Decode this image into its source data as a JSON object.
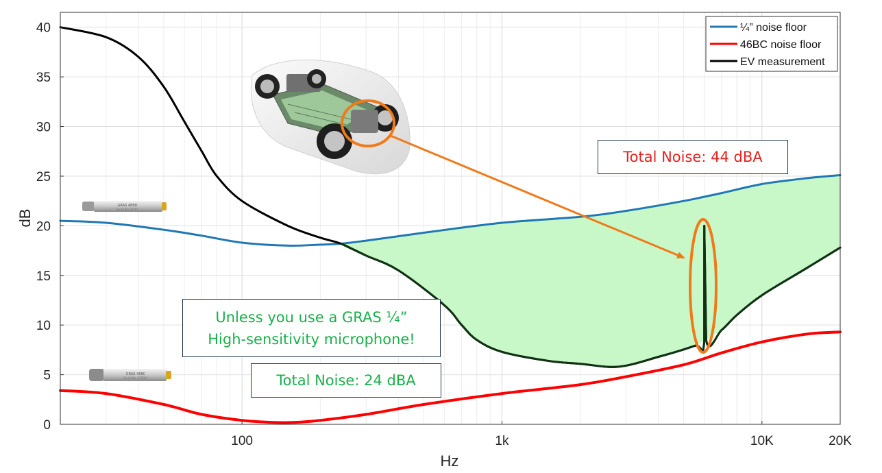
{
  "chart_data": {
    "type": "line",
    "xlabel": "Hz",
    "ylabel": "dB",
    "x_scale": "log",
    "xlim": [
      20,
      20000
    ],
    "ylim": [
      0,
      41.5
    ],
    "grid": true,
    "legend_position": "top-right",
    "x_ticks": [
      {
        "value": 100,
        "label": "100"
      },
      {
        "value": 1000,
        "label": "1k"
      },
      {
        "value": 10000,
        "label": "10K"
      },
      {
        "value": 20000,
        "label": "20K"
      }
    ],
    "y_ticks": [
      0,
      5,
      10,
      15,
      20,
      25,
      30,
      35,
      40
    ],
    "series": [
      {
        "name": "¼” noise floor",
        "color": "#1f77b4",
        "x": [
          20,
          30,
          50,
          70,
          100,
          150,
          200,
          240,
          300,
          500,
          1000,
          2000,
          3000,
          5000,
          7000,
          10000,
          15000,
          20000
        ],
        "y": [
          20.5,
          20.3,
          19.6,
          19.0,
          18.3,
          18.0,
          18.1,
          18.2,
          18.5,
          19.3,
          20.3,
          20.9,
          21.5,
          22.5,
          23.3,
          24.2,
          24.8,
          25.1
        ]
      },
      {
        "name": "46BC noise floor",
        "color": "#ff0000",
        "x": [
          20,
          30,
          50,
          70,
          100,
          130,
          160,
          200,
          300,
          500,
          1000,
          2000,
          3000,
          5000,
          7000,
          10000,
          15000,
          20000
        ],
        "y": [
          3.4,
          3.1,
          2.0,
          1.0,
          0.4,
          0.2,
          0.2,
          0.4,
          1.0,
          2.0,
          3.1,
          4.0,
          4.8,
          6.0,
          7.2,
          8.3,
          9.1,
          9.3
        ]
      },
      {
        "name": "EV measurement",
        "color": "#000000",
        "x": [
          20,
          30,
          40,
          50,
          60,
          70,
          80,
          100,
          150,
          200,
          240,
          300,
          400,
          600,
          700,
          800,
          1000,
          1500,
          2000,
          2800,
          4000,
          5500,
          6000,
          6000,
          6100,
          7000,
          8000,
          10000,
          15000,
          20000
        ],
        "y": [
          40.0,
          39.0,
          37.0,
          34.0,
          30.5,
          27.5,
          25.0,
          22.5,
          20.0,
          18.8,
          18.2,
          17.0,
          15.5,
          12.0,
          10.0,
          8.5,
          7.3,
          6.4,
          6.1,
          5.8,
          6.8,
          7.9,
          8.4,
          20.0,
          8.5,
          9.5,
          11.0,
          13.0,
          15.8,
          17.8
        ]
      }
    ],
    "shaded_region": {
      "between": [
        "¼” noise floor",
        "EV measurement"
      ],
      "from_x": 240,
      "to_x": 20000,
      "color": "#c8f8c8"
    }
  },
  "annotations": {
    "total_noise_44": "Total Noise: 44 dBA",
    "gras_line1": "Unless you use a GRAS ¼”",
    "gras_line2": "High-sensitivity microphone!",
    "total_noise_24": "Total Noise: 24 dBA"
  },
  "images": {
    "mic_top_label": "GRAS 46BD",
    "mic_top_serial": "Serial No 54765",
    "mic_bottom_label": "GRAS 46BC",
    "mic_bottom_serial": "Serial No. 545001"
  },
  "colors": {
    "callout_red": "#e8211d",
    "callout_green": "#19b04a",
    "highlight_orange": "#f07a1a"
  }
}
